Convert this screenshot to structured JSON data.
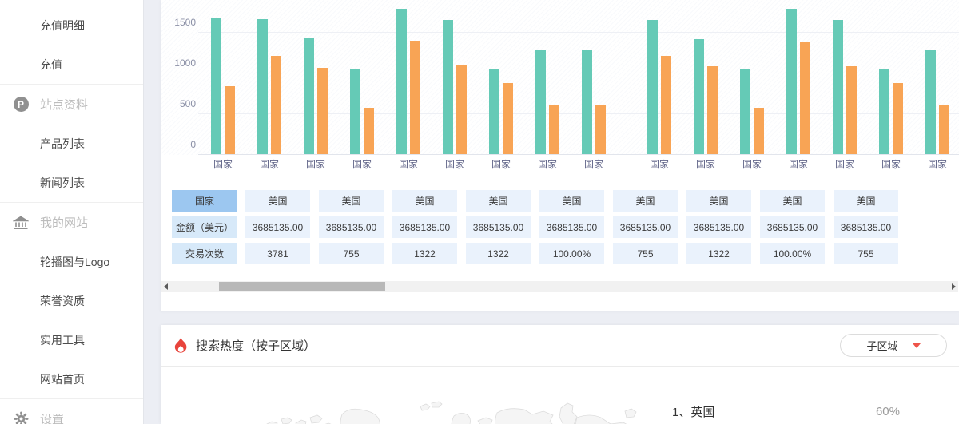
{
  "sidebar": {
    "items": [
      {
        "kind": "item",
        "id": "recharge-detail",
        "label": "充值明细"
      },
      {
        "kind": "item",
        "id": "recharge",
        "label": "充值"
      },
      {
        "kind": "section",
        "id": "site-info",
        "label": "站点资料",
        "icon": "p-badge-icon",
        "divider": true
      },
      {
        "kind": "item",
        "id": "product-list",
        "label": "产品列表"
      },
      {
        "kind": "item",
        "id": "news-list",
        "label": "新闻列表"
      },
      {
        "kind": "section",
        "id": "my-website",
        "label": "我的网站",
        "icon": "bank-icon",
        "divider": true
      },
      {
        "kind": "item",
        "id": "banner-logo",
        "label": "轮播图与Logo"
      },
      {
        "kind": "item",
        "id": "honors",
        "label": "荣誉资质"
      },
      {
        "kind": "item",
        "id": "tools",
        "label": "实用工具"
      },
      {
        "kind": "item",
        "id": "site-home",
        "label": "网站首页"
      },
      {
        "kind": "section",
        "id": "settings",
        "label": "设置",
        "icon": "gear-icon",
        "divider": true
      }
    ]
  },
  "chart_data": {
    "type": "bar",
    "categories": [
      "国家",
      "国家",
      "国家",
      "国家",
      "国家",
      "国家",
      "国家",
      "国家",
      "国家",
      "国家",
      "国家",
      "国家",
      "国家",
      "国家",
      "国家",
      "国家"
    ],
    "series": [
      {
        "name": "series-teal",
        "color": "#65cab6",
        "values": [
          1680,
          1660,
          1420,
          1050,
          1780,
          1650,
          1050,
          1280,
          1280,
          1650,
          1410,
          1050,
          1780,
          1650,
          1050,
          1280
        ]
      },
      {
        "name": "series-orange",
        "color": "#f8a455",
        "values": [
          830,
          1210,
          1060,
          570,
          1390,
          1090,
          870,
          610,
          610,
          1210,
          1080,
          570,
          1370,
          1080,
          870,
          610
        ]
      }
    ],
    "yticks": [
      0,
      500,
      1000,
      1500
    ],
    "ylim": [
      0,
      1900
    ],
    "grid": true,
    "gap_after_index": 8,
    "note_top_cropped": "chart top edge is cut off by viewport"
  },
  "table": {
    "rows": [
      {
        "header": "国家",
        "cells": [
          "美国",
          "美国",
          "美国",
          "美国",
          "美国",
          "美国",
          "美国",
          "美国",
          "美国"
        ]
      },
      {
        "header": "金额（美元）",
        "cells": [
          "3685135.00",
          "3685135.00",
          "3685135.00",
          "3685135.00",
          "3685135.00",
          "3685135.00",
          "3685135.00",
          "3685135.00",
          "3685135.00"
        ]
      },
      {
        "header": "交易次数",
        "cells": [
          "3781",
          "755",
          "1322",
          "1322",
          "100.00%",
          "755",
          "1322",
          "100.00%",
          "755"
        ]
      }
    ]
  },
  "heat": {
    "title": "搜索热度（按子区域）",
    "dropdown_label": "子区域",
    "ranking": [
      {
        "label": "1、英国",
        "percent": "60%"
      }
    ]
  },
  "colors": {
    "bar_teal": "#65cab6",
    "bar_orange": "#f8a455",
    "table_header_primary": "#9cc7f0",
    "table_header_secondary": "#d7e9f9",
    "table_cell": "#eaf2fc",
    "flame_red": "#e8443c",
    "caret_red": "#ee544a",
    "page_background": "#eceef4"
  }
}
